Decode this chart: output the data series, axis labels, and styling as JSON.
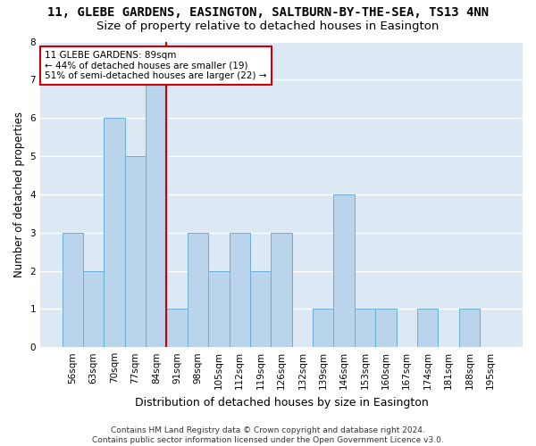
{
  "title": "11, GLEBE GARDENS, EASINGTON, SALTBURN-BY-THE-SEA, TS13 4NN",
  "subtitle": "Size of property relative to detached houses in Easington",
  "xlabel": "Distribution of detached houses by size in Easington",
  "ylabel": "Number of detached properties",
  "categories": [
    "56sqm",
    "63sqm",
    "70sqm",
    "77sqm",
    "84sqm",
    "91sqm",
    "98sqm",
    "105sqm",
    "112sqm",
    "119sqm",
    "126sqm",
    "132sqm",
    "139sqm",
    "146sqm",
    "153sqm",
    "160sqm",
    "167sqm",
    "174sqm",
    "181sqm",
    "188sqm",
    "195sqm"
  ],
  "values": [
    3,
    2,
    6,
    5,
    7,
    1,
    3,
    2,
    3,
    2,
    3,
    0,
    1,
    4,
    1,
    1,
    0,
    1,
    0,
    1,
    0
  ],
  "bar_color": "#bad4eb",
  "bar_edge_color": "#6aaed6",
  "annotation_text": "11 GLEBE GARDENS: 89sqm\n← 44% of detached houses are smaller (19)\n51% of semi-detached houses are larger (22) →",
  "annotation_box_color": "#ffffff",
  "annotation_box_edge": "#cc0000",
  "highlight_line_color": "#cc0000",
  "background_color": "#ffffff",
  "plot_bg_color": "#dce9f5",
  "grid_color": "#ffffff",
  "ylim": [
    0,
    8
  ],
  "yticks": [
    0,
    1,
    2,
    3,
    4,
    5,
    6,
    7,
    8
  ],
  "title_fontsize": 10,
  "subtitle_fontsize": 9.5,
  "xlabel_fontsize": 9,
  "ylabel_fontsize": 8.5,
  "tick_fontsize": 7.5,
  "footer_fontsize": 6.5,
  "footer": "Contains HM Land Registry data © Crown copyright and database right 2024.\nContains public sector information licensed under the Open Government Licence v3.0."
}
